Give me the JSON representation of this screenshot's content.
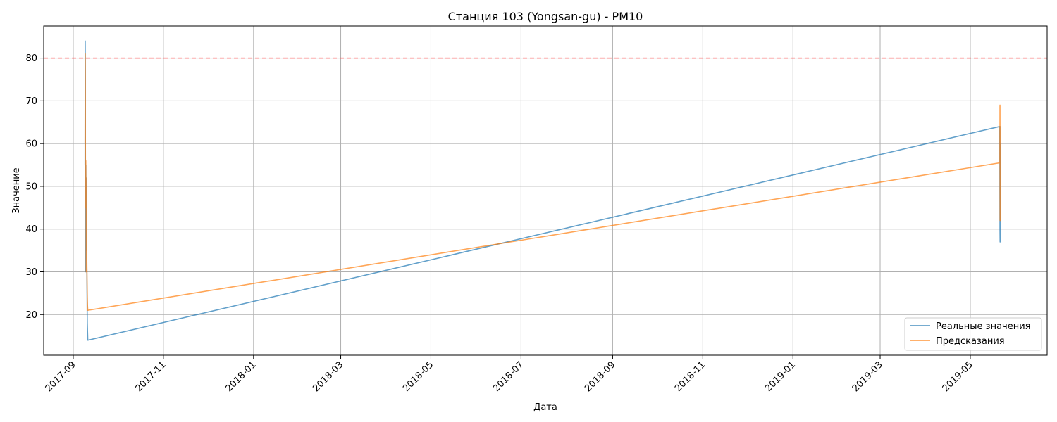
{
  "chart_data": {
    "type": "line",
    "title": "Станция 103 (Yongsan-gu) - PM10",
    "xlabel": "Дата",
    "ylabel": "Значение",
    "x_axis_type": "date",
    "xlim": [
      "2017-08-12",
      "2019-06-22"
    ],
    "ylim": [
      10.5,
      87.5
    ],
    "grid": true,
    "legend_position": "lower-right",
    "x_ticks": [
      "2017-09",
      "2017-11",
      "2018-01",
      "2018-03",
      "2018-05",
      "2018-07",
      "2018-09",
      "2018-11",
      "2019-01",
      "2019-03",
      "2019-05"
    ],
    "y_ticks": [
      20,
      30,
      40,
      50,
      60,
      70,
      80
    ],
    "threshold": {
      "value": 80,
      "color": "#ff4d4d",
      "style": "dashed"
    },
    "series": [
      {
        "name": "Реальные значения",
        "color": "#1f77b4",
        "points": [
          [
            "2017-09-09 00:00",
            55
          ],
          [
            "2017-09-09 02:00",
            84
          ],
          [
            "2017-09-09 04:00",
            75
          ],
          [
            "2017-09-09 06:00",
            30
          ],
          [
            "2017-09-09 08:00",
            48
          ],
          [
            "2017-09-09 10:00",
            35
          ],
          [
            "2017-09-09 12:00",
            55
          ],
          [
            "2017-09-09 14:00",
            40
          ],
          [
            "2017-09-09 16:00",
            52
          ],
          [
            "2017-09-09 18:00",
            45
          ],
          [
            "2017-09-09 20:00",
            50
          ],
          [
            "2017-09-09 22:00",
            42
          ],
          [
            "2017-09-10 00:00",
            48
          ],
          [
            "2017-09-10 04:00",
            32
          ],
          [
            "2017-09-10 08:00",
            25
          ],
          [
            "2017-09-10 12:00",
            18
          ],
          [
            "2017-09-10 16:00",
            16
          ],
          [
            "2017-09-10 20:00",
            14
          ],
          [
            "2019-05-21 00:00",
            64
          ],
          [
            "2019-05-21 02:00",
            40
          ],
          [
            "2019-05-21 04:00",
            37
          ],
          [
            "2019-05-21 06:00",
            55
          ],
          [
            "2019-05-21 08:00",
            45
          ],
          [
            "2019-05-21 10:00",
            60
          ],
          [
            "2019-05-21 12:00",
            52
          ]
        ]
      },
      {
        "name": "Предсказания",
        "color": "#ff7f0e",
        "points": [
          [
            "2017-09-09 00:00",
            60
          ],
          [
            "2017-09-09 02:00",
            81
          ],
          [
            "2017-09-09 04:00",
            73
          ],
          [
            "2017-09-09 06:00",
            56
          ],
          [
            "2017-09-09 08:00",
            50
          ],
          [
            "2017-09-09 10:00",
            45
          ],
          [
            "2017-09-09 12:00",
            56
          ],
          [
            "2017-09-09 14:00",
            48
          ],
          [
            "2017-09-09 16:00",
            52
          ],
          [
            "2017-09-09 18:00",
            30
          ],
          [
            "2017-09-09 20:00",
            45
          ],
          [
            "2017-09-09 22:00",
            50
          ],
          [
            "2017-09-10 00:00",
            42
          ],
          [
            "2017-09-10 04:00",
            33
          ],
          [
            "2017-09-10 08:00",
            28
          ],
          [
            "2017-09-10 12:00",
            24
          ],
          [
            "2017-09-10 16:00",
            22
          ],
          [
            "2017-09-10 20:00",
            21
          ],
          [
            "2019-05-21 00:00",
            55.5
          ],
          [
            "2019-05-21 02:00",
            69
          ],
          [
            "2019-05-21 04:00",
            42
          ],
          [
            "2019-05-21 06:00",
            60
          ],
          [
            "2019-05-21 08:00",
            46
          ],
          [
            "2019-05-21 10:00",
            64
          ],
          [
            "2019-05-21 12:00",
            50
          ]
        ]
      }
    ]
  }
}
